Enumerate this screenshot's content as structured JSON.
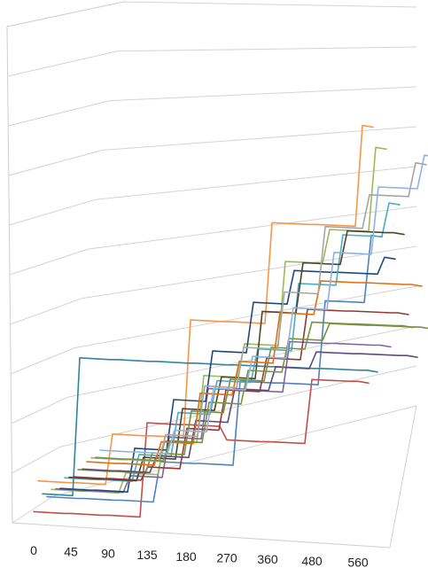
{
  "chart_data": {
    "type": "line",
    "view": "3d-perspective",
    "title": "",
    "xlabel": "",
    "ylabel": "",
    "zlabel": "",
    "x_tick_labels": [
      "0",
      "45",
      "90",
      "135",
      "180",
      "270",
      "360",
      "480",
      "560"
    ],
    "x": [
      0,
      45,
      90,
      135,
      180,
      270,
      360,
      480,
      560
    ],
    "y_gridlines": 10,
    "grid": true,
    "legend": "none",
    "series": [
      {
        "color": "#c0504d",
        "values": [
          0.2,
          0.2,
          0.2,
          3.0,
          3.0,
          2.6,
          2.6,
          4.5,
          4.5
        ]
      },
      {
        "color": "#f79646",
        "values": [
          1.0,
          1.0,
          2.5,
          2.5,
          6.0,
          6.0,
          9.0,
          9.0,
          12.0
        ]
      },
      {
        "color": "#31859c",
        "values": [
          0.5,
          4.6,
          4.6,
          4.6,
          4.6,
          4.6,
          4.6,
          4.6,
          4.6
        ]
      },
      {
        "color": "#4f81bd",
        "values": [
          0.3,
          0.3,
          0.3,
          1.5,
          1.5,
          4.0,
          4.0,
          6.5,
          8.5
        ]
      },
      {
        "color": "#9bbb59",
        "values": [
          0.4,
          0.4,
          1.0,
          2.0,
          4.0,
          5.0,
          7.5,
          8.5,
          11.0
        ]
      },
      {
        "color": "#8064a2",
        "values": [
          0.3,
          0.3,
          0.8,
          2.0,
          3.5,
          3.5,
          5.0,
          5.0,
          5.0
        ]
      },
      {
        "color": "#1f497d",
        "values": [
          0.2,
          0.2,
          1.5,
          3.0,
          4.5,
          6.0,
          7.0,
          7.0,
          7.5
        ]
      },
      {
        "color": "#4bacc6",
        "values": [
          0.4,
          0.4,
          1.2,
          2.5,
          3.5,
          4.5,
          6.5,
          8.0,
          9.0
        ]
      },
      {
        "color": "#4a452a",
        "values": [
          0.3,
          0.3,
          1.0,
          2.5,
          3.5,
          5.5,
          7.0,
          8.0,
          8.0
        ]
      },
      {
        "color": "#953735",
        "values": [
          0.2,
          0.2,
          0.6,
          1.8,
          3.0,
          4.0,
          5.5,
          5.5,
          5.5
        ]
      },
      {
        "color": "#76923c",
        "values": [
          0.3,
          0.3,
          0.9,
          2.2,
          3.2,
          4.2,
          5.0,
          5.0,
          5.0
        ]
      },
      {
        "color": "#604a7b",
        "values": [
          0.2,
          0.2,
          0.7,
          1.8,
          2.8,
          3.5,
          4.0,
          4.0,
          4.0
        ]
      },
      {
        "color": "#e46c0a",
        "values": [
          0.3,
          0.3,
          1.0,
          2.5,
          3.5,
          5.0,
          6.0,
          6.0,
          6.0
        ]
      },
      {
        "color": "#a5a5a5",
        "values": [
          0.3,
          0.3,
          1.1,
          2.6,
          3.8,
          5.5,
          7.5,
          8.5,
          9.5
        ]
      },
      {
        "color": "#77933c",
        "values": [
          0.2,
          0.2,
          0.8,
          2.0,
          3.0,
          4.0,
          4.5,
          4.5,
          4.5
        ]
      },
      {
        "color": "#8db3e2",
        "values": [
          0.3,
          0.3,
          1.0,
          2.3,
          3.3,
          4.8,
          6.5,
          8.5,
          9.5
        ]
      }
    ]
  }
}
